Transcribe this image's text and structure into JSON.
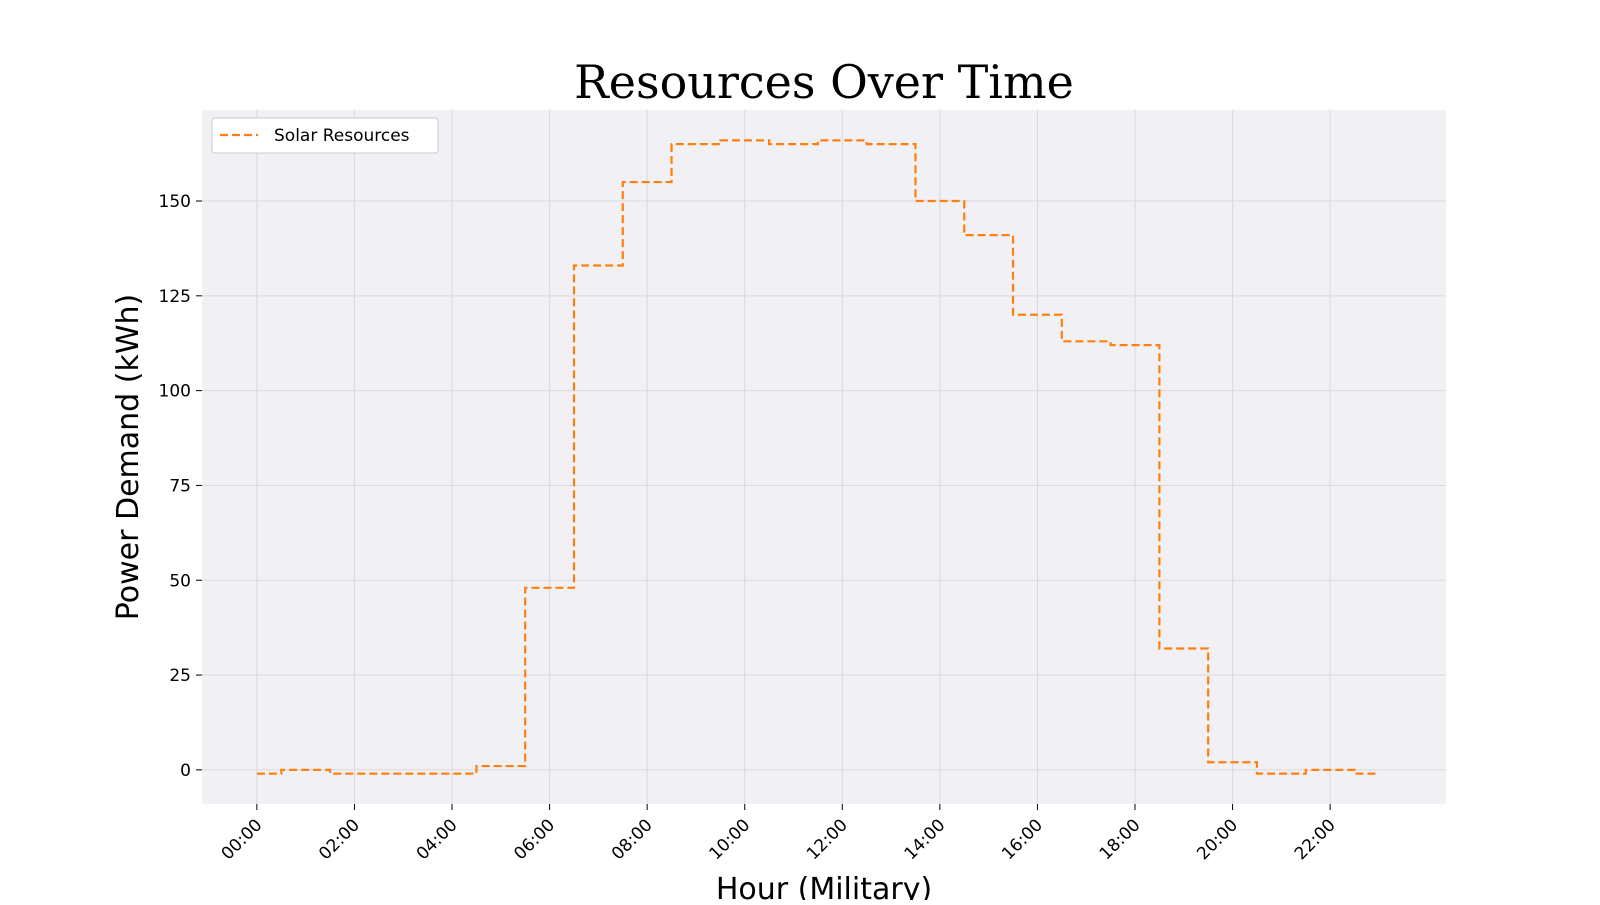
{
  "chart_data": {
    "type": "line",
    "title": "Resources Over Time",
    "xlabel": "Hour (Military)",
    "ylabel": "Power Demand (kWh)",
    "x_ticks": [
      "00:00",
      "02:00",
      "04:00",
      "06:00",
      "08:00",
      "10:00",
      "12:00",
      "14:00",
      "16:00",
      "18:00",
      "20:00",
      "22:00"
    ],
    "y_ticks": [
      0,
      25,
      50,
      75,
      100,
      125,
      150
    ],
    "xlim": [
      -1.125,
      24.375
    ],
    "ylim": [
      -9,
      174
    ],
    "grid": true,
    "legend_position": "top-left",
    "series": [
      {
        "name": "Solar Resources",
        "color": "#ff7f0e",
        "line_style": "dashed",
        "step": "mid",
        "x": [
          0,
          1,
          2,
          3,
          4,
          5,
          6,
          7,
          8,
          9,
          10,
          11,
          12,
          13,
          14,
          15,
          16,
          17,
          18,
          19,
          20,
          21,
          22,
          23
        ],
        "values": [
          -1,
          0,
          -1,
          -1,
          -1,
          1,
          48,
          133,
          155,
          165,
          166,
          165,
          166,
          165,
          150,
          141,
          120,
          113,
          112,
          32,
          2,
          -1,
          0,
          -1
        ]
      }
    ]
  },
  "colors": {
    "plot_background": "#f0f0f5",
    "grid": "#d9d9de"
  }
}
